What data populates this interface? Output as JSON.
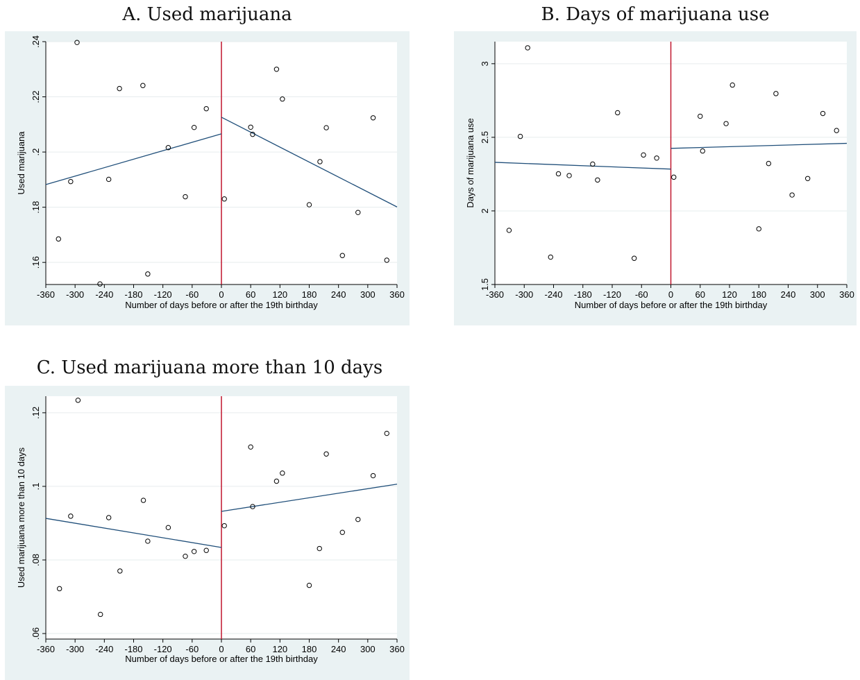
{
  "chart_data": [
    {
      "type": "scatter",
      "title": "A. Used marijuana",
      "xlabel": "Number of days before or after the 19th birthday",
      "ylabel": "Used marijuana",
      "xlim": [
        -360,
        360
      ],
      "ylim": [
        0.152,
        0.24
      ],
      "xticks": [
        "-360",
        "-300",
        "-240",
        "-180",
        "-120",
        "-60",
        "0",
        "60",
        "120",
        "180",
        "240",
        "300",
        "360"
      ],
      "yticks": [
        ".16",
        ".18",
        ".2",
        ".22",
        ".24"
      ],
      "grid": true,
      "cutoff": 0,
      "colors": {
        "points": "#000000",
        "fit": "#1f4e79",
        "cutoff": "#c0152d"
      },
      "points": [
        {
          "x": -334,
          "y": 0.1685
        },
        {
          "x": -309,
          "y": 0.1893
        },
        {
          "x": -296,
          "y": 0.2397
        },
        {
          "x": -249,
          "y": 0.1522
        },
        {
          "x": -231,
          "y": 0.1901
        },
        {
          "x": -209,
          "y": 0.223
        },
        {
          "x": -161,
          "y": 0.2241
        },
        {
          "x": -151,
          "y": 0.1558
        },
        {
          "x": -109,
          "y": 0.2016
        },
        {
          "x": -74,
          "y": 0.1838
        },
        {
          "x": -56,
          "y": 0.2089
        },
        {
          "x": -31,
          "y": 0.2157
        },
        {
          "x": 6,
          "y": 0.183
        },
        {
          "x": 60,
          "y": 0.209
        },
        {
          "x": 64,
          "y": 0.2064
        },
        {
          "x": 113,
          "y": 0.23
        },
        {
          "x": 125,
          "y": 0.2192
        },
        {
          "x": 180,
          "y": 0.1809
        },
        {
          "x": 202,
          "y": 0.1965
        },
        {
          "x": 215,
          "y": 0.2088
        },
        {
          "x": 248,
          "y": 0.1625
        },
        {
          "x": 280,
          "y": 0.1781
        },
        {
          "x": 311,
          "y": 0.2124
        },
        {
          "x": 339,
          "y": 0.1608
        }
      ],
      "fit_left": [
        [
          -360,
          0.1882
        ],
        [
          0,
          0.2066
        ]
      ],
      "fit_right": [
        [
          0,
          0.2126
        ],
        [
          360,
          0.1801
        ]
      ]
    },
    {
      "type": "scatter",
      "title": "B. Days of marijuana use",
      "xlabel": "Number of days before or after the 19th birthday",
      "ylabel": "Days of marijuana use",
      "xlim": [
        -360,
        360
      ],
      "ylim": [
        1.5,
        3.15
      ],
      "xticks": [
        "-360",
        "-300",
        "-240",
        "-180",
        "-120",
        "-60",
        "0",
        "60",
        "120",
        "180",
        "240",
        "300",
        "360"
      ],
      "yticks": [
        "1.5",
        "2",
        "2.5",
        "3"
      ],
      "grid": true,
      "cutoff": 0,
      "colors": {
        "points": "#000000",
        "fit": "#1f4e79",
        "cutoff": "#c0152d"
      },
      "points": [
        {
          "x": -331,
          "y": 1.868
        },
        {
          "x": -308,
          "y": 2.506
        },
        {
          "x": -293,
          "y": 3.108
        },
        {
          "x": -246,
          "y": 1.686
        },
        {
          "x": -230,
          "y": 2.252
        },
        {
          "x": -208,
          "y": 2.24
        },
        {
          "x": -160,
          "y": 2.318
        },
        {
          "x": -150,
          "y": 2.21
        },
        {
          "x": -109,
          "y": 2.667
        },
        {
          "x": -75,
          "y": 1.678
        },
        {
          "x": -56,
          "y": 2.38
        },
        {
          "x": -29,
          "y": 2.359
        },
        {
          "x": 6,
          "y": 2.229
        },
        {
          "x": 60,
          "y": 2.643
        },
        {
          "x": 65,
          "y": 2.407
        },
        {
          "x": 113,
          "y": 2.593
        },
        {
          "x": 126,
          "y": 2.855
        },
        {
          "x": 180,
          "y": 1.878
        },
        {
          "x": 200,
          "y": 2.322
        },
        {
          "x": 215,
          "y": 2.797
        },
        {
          "x": 248,
          "y": 2.108
        },
        {
          "x": 280,
          "y": 2.22
        },
        {
          "x": 311,
          "y": 2.662
        },
        {
          "x": 339,
          "y": 2.546
        }
      ],
      "fit_left": [
        [
          -360,
          2.33
        ],
        [
          0,
          2.284
        ]
      ],
      "fit_right": [
        [
          0,
          2.425
        ],
        [
          360,
          2.459
        ]
      ]
    },
    {
      "type": "scatter",
      "title": "C. Used marijuana more than 10 days",
      "xlabel": "Number of days before or after the 19th birthday",
      "ylabel": "Used marijuana more than 10 days",
      "xlim": [
        -360,
        360
      ],
      "ylim": [
        0.0585,
        0.1245
      ],
      "xticks": [
        "-360",
        "-300",
        "-240",
        "-180",
        "-120",
        "-60",
        "0",
        "60",
        "120",
        "180",
        "240",
        "300",
        "360"
      ],
      "yticks": [
        ".06",
        ".08",
        ".1",
        ".12"
      ],
      "grid": true,
      "cutoff": 0,
      "colors": {
        "points": "#000000",
        "fit": "#1f4e79",
        "cutoff": "#c0152d"
      },
      "points": [
        {
          "x": -332,
          "y": 0.0722
        },
        {
          "x": -309,
          "y": 0.0919
        },
        {
          "x": -294,
          "y": 0.1234
        },
        {
          "x": -248,
          "y": 0.0652
        },
        {
          "x": -231,
          "y": 0.0915
        },
        {
          "x": -208,
          "y": 0.077
        },
        {
          "x": -160,
          "y": 0.0962
        },
        {
          "x": -151,
          "y": 0.0851
        },
        {
          "x": -109,
          "y": 0.0888
        },
        {
          "x": -74,
          "y": 0.081
        },
        {
          "x": -56,
          "y": 0.0823
        },
        {
          "x": -31,
          "y": 0.0826
        },
        {
          "x": 6,
          "y": 0.0893
        },
        {
          "x": 60,
          "y": 0.1107
        },
        {
          "x": 64,
          "y": 0.0945
        },
        {
          "x": 113,
          "y": 0.1014
        },
        {
          "x": 125,
          "y": 0.1036
        },
        {
          "x": 180,
          "y": 0.0731
        },
        {
          "x": 201,
          "y": 0.0831
        },
        {
          "x": 215,
          "y": 0.1088
        },
        {
          "x": 248,
          "y": 0.0875
        },
        {
          "x": 280,
          "y": 0.091
        },
        {
          "x": 311,
          "y": 0.1029
        },
        {
          "x": 339,
          "y": 0.1144
        }
      ],
      "fit_left": [
        [
          -360,
          0.0913
        ],
        [
          0,
          0.0834
        ]
      ],
      "fit_right": [
        [
          0,
          0.0932
        ],
        [
          360,
          0.1006
        ]
      ]
    }
  ]
}
